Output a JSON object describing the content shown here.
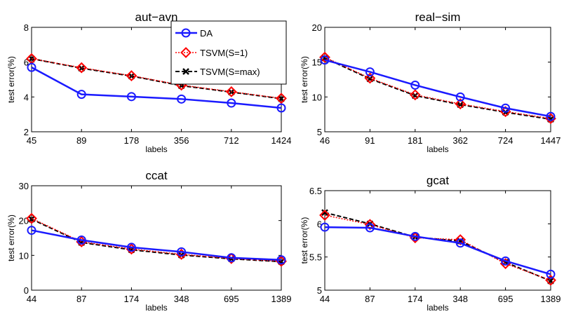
{
  "chart_data": [
    {
      "type": "line",
      "title": "aut−avn",
      "xlabel": "labels",
      "ylabel": "test error(%)",
      "categories": [
        "45",
        "89",
        "178",
        "356",
        "712",
        "1424"
      ],
      "ylim": [
        2,
        8
      ],
      "yticks": [
        "2",
        "4",
        "6",
        "8"
      ],
      "series": [
        {
          "name": "DA",
          "values": [
            5.7,
            4.15,
            4.02,
            3.88,
            3.65,
            3.37
          ]
        },
        {
          "name": "TSVM(S=1)",
          "values": [
            6.2,
            5.68,
            5.22,
            4.68,
            4.3,
            3.92
          ]
        },
        {
          "name": "TSVM(S=max)",
          "values": [
            6.2,
            5.65,
            5.2,
            4.65,
            4.28,
            3.9
          ]
        }
      ]
    },
    {
      "type": "line",
      "title": "real−sim",
      "xlabel": "labels",
      "ylabel": "test error(%)",
      "categories": [
        "46",
        "91",
        "181",
        "362",
        "724",
        "1447"
      ],
      "ylim": [
        5,
        20
      ],
      "yticks": [
        "5",
        "10",
        "15",
        "20"
      ],
      "series": [
        {
          "name": "DA",
          "values": [
            15.3,
            13.6,
            11.7,
            10.0,
            8.4,
            7.2
          ]
        },
        {
          "name": "TSVM(S=1)",
          "values": [
            15.7,
            12.7,
            10.3,
            9.0,
            7.9,
            6.9
          ]
        },
        {
          "name": "TSVM(S=max)",
          "values": [
            15.6,
            12.6,
            10.2,
            8.9,
            7.8,
            6.8
          ]
        }
      ]
    },
    {
      "type": "line",
      "title": "ccat",
      "xlabel": "labels",
      "ylabel": "test error(%)",
      "categories": [
        "44",
        "87",
        "174",
        "348",
        "695",
        "1389"
      ],
      "ylim": [
        0,
        30
      ],
      "yticks": [
        "0",
        "10",
        "20",
        "30"
      ],
      "series": [
        {
          "name": "DA",
          "values": [
            17.2,
            14.4,
            12.3,
            11.0,
            9.3,
            8.7
          ]
        },
        {
          "name": "TSVM(S=1)",
          "values": [
            20.6,
            13.9,
            11.8,
            10.3,
            9.1,
            8.3
          ]
        },
        {
          "name": "TSVM(S=max)",
          "values": [
            20.4,
            13.7,
            11.6,
            10.1,
            9.0,
            8.2
          ]
        }
      ]
    },
    {
      "type": "line",
      "title": "gcat",
      "xlabel": "labels",
      "ylabel": "test error(%)",
      "categories": [
        "44",
        "87",
        "174",
        "348",
        "695",
        "1389"
      ],
      "ylim": [
        5,
        6.5
      ],
      "yticks": [
        "5",
        "5.5",
        "6",
        "6.5"
      ],
      "series": [
        {
          "name": "DA",
          "values": [
            5.95,
            5.94,
            5.81,
            5.71,
            5.44,
            5.24
          ]
        },
        {
          "name": "TSVM(S=1)",
          "values": [
            6.13,
            5.99,
            5.79,
            5.76,
            5.4,
            5.15
          ]
        },
        {
          "name": "TSVM(S=max)",
          "values": [
            6.17,
            6.0,
            5.8,
            5.74,
            5.42,
            5.14
          ]
        }
      ]
    }
  ],
  "legend": {
    "items": [
      "DA",
      "TSVM(S=1)",
      "TSVM(S=max)"
    ]
  },
  "colors": {
    "DA": "#1a1aff",
    "TSVM(S=1)": "#ff0000",
    "TSVM(S=max)": "#000000"
  }
}
